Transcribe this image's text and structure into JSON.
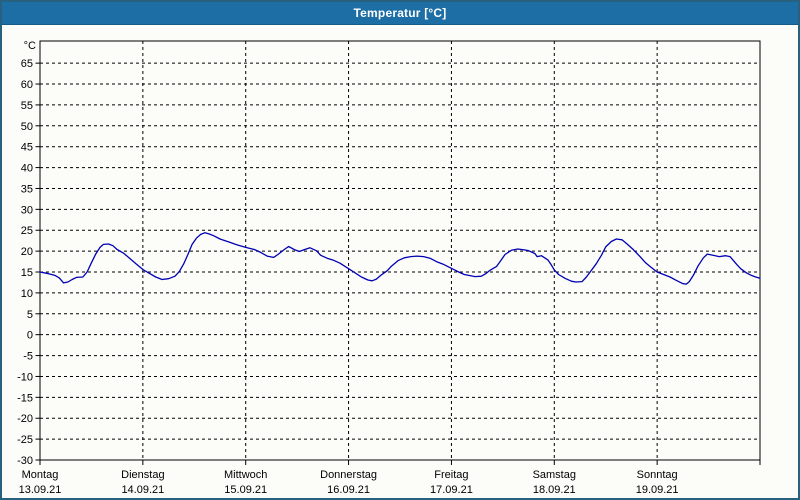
{
  "window": {
    "title": "Temperatur [°C]",
    "titlebar_color": "#1C6EA4",
    "border_color": "#28607F"
  },
  "chart_data": {
    "type": "line",
    "title": "Temperatur [°C]",
    "unit_label": "°C",
    "ylabel": "Temperatur",
    "ylim": [
      -30,
      70.3
    ],
    "y_ticks": [
      -30,
      -25,
      -20,
      -15,
      -10,
      -5,
      0,
      5,
      10,
      15,
      20,
      25,
      30,
      35,
      40,
      45,
      50,
      55,
      60,
      65
    ],
    "grid": "dashed",
    "legend_position": "none",
    "x_hours_total": 168,
    "x_day_step_hours": 24,
    "days": [
      {
        "name": "Montag",
        "date": "13.09.21"
      },
      {
        "name": "Dienstag",
        "date": "14.09.21"
      },
      {
        "name": "Mittwoch",
        "date": "15.09.21"
      },
      {
        "name": "Donnerstag",
        "date": "16.09.21"
      },
      {
        "name": "Freitag",
        "date": "17.09.21"
      },
      {
        "name": "Samstag",
        "date": "18.09.21"
      },
      {
        "name": "Sonntag",
        "date": "19.09.21"
      }
    ],
    "series": [
      {
        "name": "Temperatur",
        "color": "#0000B4",
        "points": [
          [
            0,
            15.0
          ],
          [
            2,
            14.6
          ],
          [
            3.5,
            14.2
          ],
          [
            4.5,
            13.6
          ],
          [
            5.5,
            12.4
          ],
          [
            6.5,
            12.6
          ],
          [
            7.5,
            13.2
          ],
          [
            8.5,
            13.7
          ],
          [
            10,
            13.8
          ],
          [
            11,
            15.0
          ],
          [
            12,
            17.2
          ],
          [
            13,
            19.3
          ],
          [
            14,
            20.9
          ],
          [
            14.8,
            21.6
          ],
          [
            16,
            21.7
          ],
          [
            17,
            21.3
          ],
          [
            18,
            20.4
          ],
          [
            19.5,
            19.5
          ],
          [
            21,
            18.2
          ],
          [
            22.5,
            16.9
          ],
          [
            24,
            15.6
          ],
          [
            25.5,
            14.7
          ],
          [
            27,
            13.8
          ],
          [
            28.5,
            13.2
          ],
          [
            30,
            13.4
          ],
          [
            31.5,
            14.0
          ],
          [
            32.5,
            15.1
          ],
          [
            33.5,
            16.9
          ],
          [
            34.5,
            19.2
          ],
          [
            35.5,
            21.6
          ],
          [
            36.5,
            23.1
          ],
          [
            37.5,
            24.0
          ],
          [
            38.5,
            24.4
          ],
          [
            39.5,
            24.1
          ],
          [
            40.5,
            23.7
          ],
          [
            42,
            22.9
          ],
          [
            44,
            22.2
          ],
          [
            46,
            21.5
          ],
          [
            48,
            20.9
          ],
          [
            50,
            20.4
          ],
          [
            51.5,
            19.7
          ],
          [
            53,
            18.8
          ],
          [
            54.5,
            18.5
          ],
          [
            55.5,
            19.2
          ],
          [
            57,
            20.4
          ],
          [
            58,
            21.1
          ],
          [
            59.5,
            20.3
          ],
          [
            60.5,
            19.9
          ],
          [
            61.5,
            20.3
          ],
          [
            63,
            20.8
          ],
          [
            64.5,
            20.1
          ],
          [
            65.5,
            19.0
          ],
          [
            67,
            18.3
          ],
          [
            68.5,
            17.8
          ],
          [
            70,
            17.1
          ],
          [
            72,
            15.8
          ],
          [
            73.5,
            14.8
          ],
          [
            75,
            13.8
          ],
          [
            76.5,
            13.1
          ],
          [
            77.5,
            12.9
          ],
          [
            78.5,
            13.3
          ],
          [
            79.5,
            14.2
          ],
          [
            81,
            15.3
          ],
          [
            82,
            16.4
          ],
          [
            83.5,
            17.7
          ],
          [
            85,
            18.4
          ],
          [
            86.5,
            18.7
          ],
          [
            88,
            18.8
          ],
          [
            89.5,
            18.7
          ],
          [
            91,
            18.3
          ],
          [
            92.5,
            17.5
          ],
          [
            94,
            16.9
          ],
          [
            95,
            16.4
          ],
          [
            96,
            15.9
          ],
          [
            97.5,
            15.1
          ],
          [
            99,
            14.4
          ],
          [
            100.5,
            14.1
          ],
          [
            101.5,
            13.9
          ],
          [
            103,
            14.0
          ],
          [
            104,
            14.6
          ],
          [
            105,
            15.4
          ],
          [
            106.5,
            16.3
          ],
          [
            107.5,
            17.7
          ],
          [
            108.5,
            19.2
          ],
          [
            110,
            20.2
          ],
          [
            111.5,
            20.5
          ],
          [
            113,
            20.3
          ],
          [
            114,
            20.1
          ],
          [
            115.5,
            19.4
          ],
          [
            116,
            18.7
          ],
          [
            117,
            18.9
          ],
          [
            118.5,
            17.9
          ],
          [
            119.3,
            16.7
          ],
          [
            120,
            15.5
          ],
          [
            121,
            14.4
          ],
          [
            122.5,
            13.5
          ],
          [
            124,
            12.8
          ],
          [
            125,
            12.6
          ],
          [
            126.5,
            12.7
          ],
          [
            127.5,
            13.8
          ],
          [
            128.5,
            15.2
          ],
          [
            129.8,
            17.0
          ],
          [
            131,
            19.0
          ],
          [
            132,
            21.0
          ],
          [
            133.3,
            22.3
          ],
          [
            134.5,
            22.9
          ],
          [
            135.8,
            22.7
          ],
          [
            137,
            21.7
          ],
          [
            138.5,
            20.3
          ],
          [
            140,
            18.7
          ],
          [
            141.3,
            17.2
          ],
          [
            142.5,
            16.2
          ],
          [
            144,
            15.0
          ],
          [
            145.5,
            14.4
          ],
          [
            147,
            13.8
          ],
          [
            148.5,
            13.0
          ],
          [
            150,
            12.2
          ],
          [
            150.8,
            12.1
          ],
          [
            151.5,
            12.7
          ],
          [
            152.5,
            14.3
          ],
          [
            153.5,
            16.4
          ],
          [
            154.8,
            18.4
          ],
          [
            155.7,
            19.3
          ],
          [
            157,
            19.0
          ],
          [
            158.5,
            18.7
          ],
          [
            160,
            18.9
          ],
          [
            161,
            18.7
          ],
          [
            162.5,
            16.9
          ],
          [
            163.5,
            15.8
          ],
          [
            164.8,
            14.8
          ],
          [
            166,
            14.2
          ],
          [
            167,
            13.8
          ],
          [
            168,
            13.5
          ]
        ]
      }
    ]
  }
}
